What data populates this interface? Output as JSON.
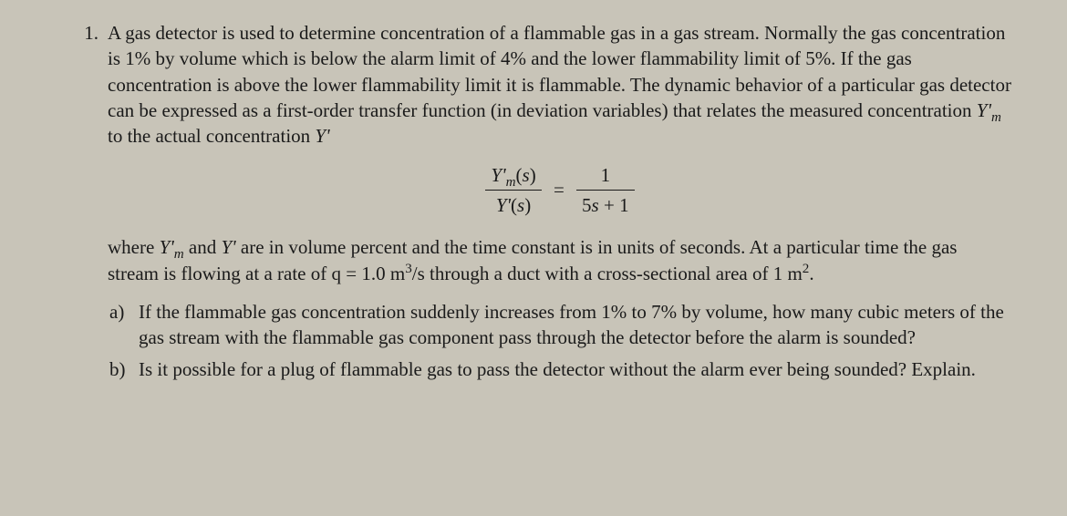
{
  "background_color": "#c8c4b8",
  "text_color": "#1a1a1a",
  "font_family": "Times New Roman",
  "font_size_pt": 16,
  "question": {
    "number": "1.",
    "intro_html": "A gas detector is used to determine concentration of a flammable gas in a gas stream. Normally the gas concentration is 1% by volume which is below the alarm limit of 4% and the lower flammability limit of 5%.  If the gas concentration is above the lower flammability limit it is flammable.  The dynamic behavior of a particular gas detector can be expressed as a first-order transfer function (in deviation variables) that relates the measured concentration <span class='it'>Y'<sub>m</sub></span> to the actual concentration <span class='it'>Y'</span>",
    "equation": {
      "lhs_num_html": "<span class='it'>Y'<sub>m</sub></span>(<span class='it'>s</span>)",
      "lhs_den_html": "<span class='it'>Y'</span>(<span class='it'>s</span>)",
      "rhs_num_html": "1",
      "rhs_den_html": "5<span class='it'>s</span> + 1"
    },
    "post_eq_html": "where <span class='it'>Y'<sub>m</sub></span> and <span class='it'>Y'</span> are in volume percent and the time constant is in units of seconds.  At a particular time the gas stream is flowing at a rate of q = 1.0 m<sup>3</sup>/s through a duct with a cross-sectional area of 1 m<sup>2</sup>.",
    "parts": [
      {
        "label": "a)",
        "text_html": "If the flammable gas concentration suddenly increases from 1% to 7% by volume, how many cubic meters of the gas stream with the flammable gas component pass through the detector before the alarm is sounded?"
      },
      {
        "label": "b)",
        "text_html": "Is it possible for a plug of flammable gas to pass the detector without the alarm ever being sounded?  Explain."
      }
    ]
  }
}
